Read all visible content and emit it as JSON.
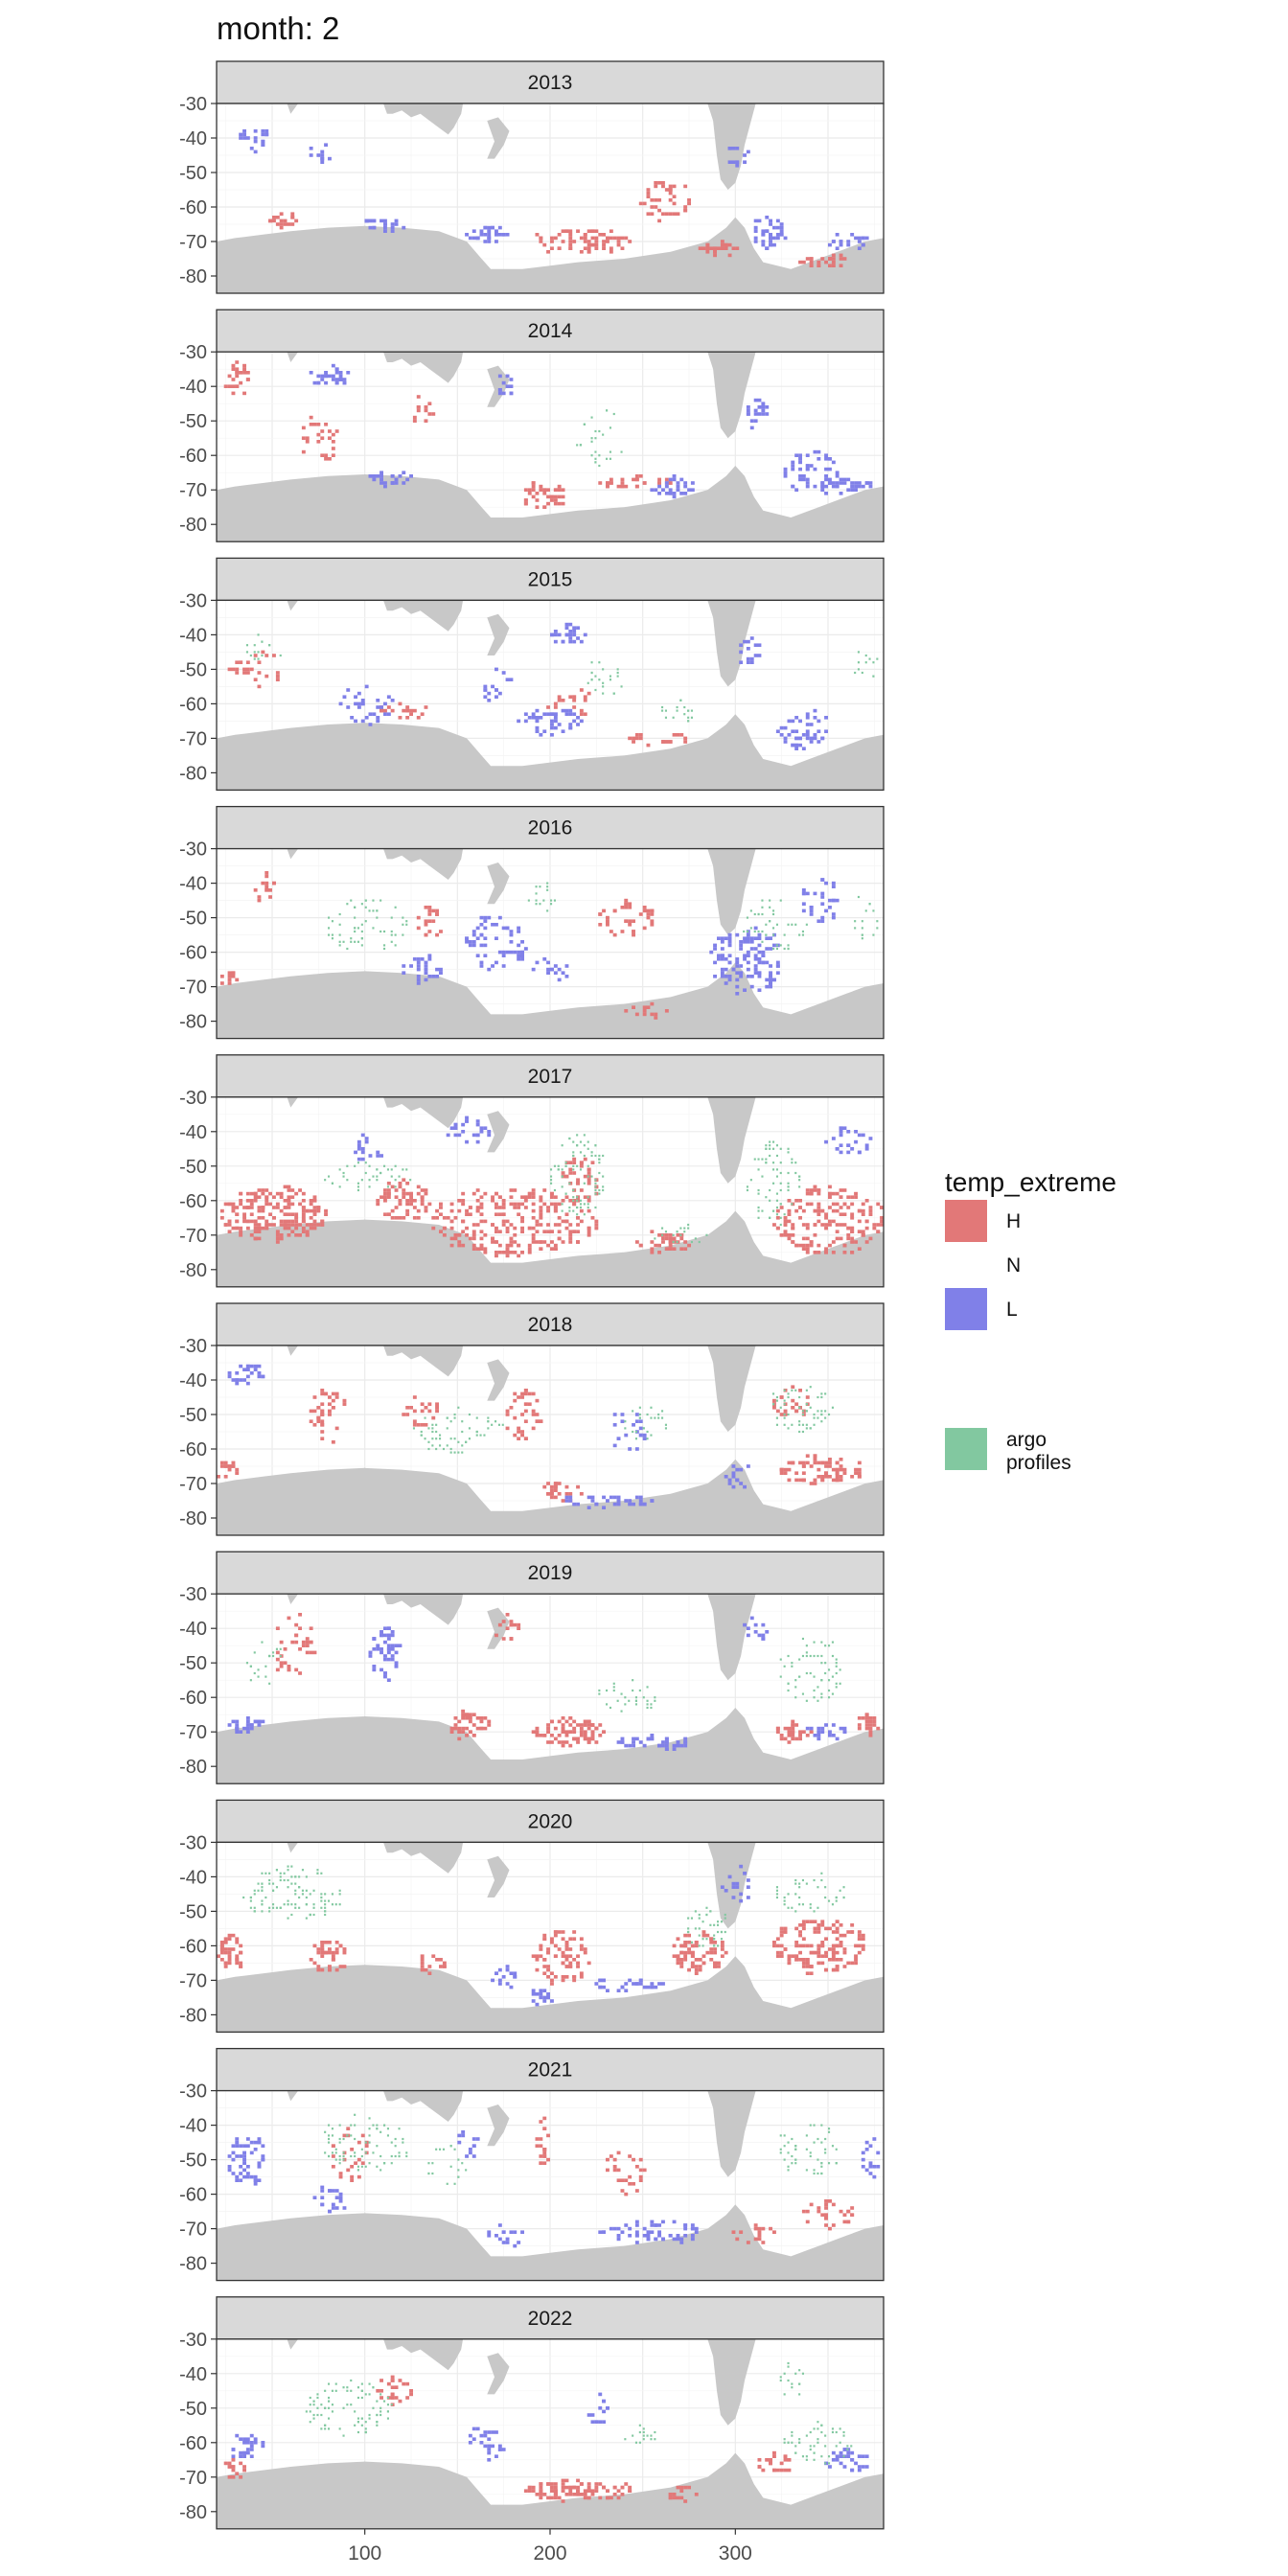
{
  "title": "month: 2",
  "chart_data": {
    "type": "heatmap",
    "facet_by": "year",
    "panels": [
      "2013",
      "2014",
      "2015",
      "2016",
      "2017",
      "2018",
      "2019",
      "2020",
      "2021",
      "2022"
    ],
    "x_ticks": [
      100,
      200,
      300
    ],
    "x_range": [
      20,
      380
    ],
    "y_ticks": [
      -30,
      -40,
      -50,
      -60,
      -70,
      -80
    ],
    "y_range": [
      -85,
      -30
    ],
    "grid": true,
    "land_color": "#c8c8c8",
    "legend": {
      "title": "temp_extreme",
      "position": "right",
      "entries": [
        {
          "label": "H",
          "color": "#e27878"
        },
        {
          "label": "N",
          "color": "#ffffff"
        },
        {
          "label": "L",
          "color": "#8080e8"
        }
      ],
      "profiles": {
        "label": [
          "argo",
          "profiles"
        ],
        "color": "#82c8a0"
      }
    },
    "blobs": {
      "2013": [
        [
          "H",
          262,
          -58,
          14,
          6,
          40
        ],
        [
          "H",
          215,
          -70,
          28,
          3.5,
          70
        ],
        [
          "H",
          55,
          -64,
          8,
          2,
          20
        ],
        [
          "H",
          290,
          -72,
          10,
          2,
          25
        ],
        [
          "H",
          348,
          -76,
          14,
          2,
          25
        ],
        [
          "L",
          40,
          -40,
          8,
          4,
          20
        ],
        [
          "L",
          318,
          -67,
          10,
          5,
          40
        ],
        [
          "L",
          165,
          -68,
          12,
          2.5,
          30
        ],
        [
          "L",
          110,
          -65,
          12,
          2,
          25
        ],
        [
          "L",
          360,
          -70,
          12,
          2,
          20
        ],
        [
          "L",
          300,
          -45,
          6,
          4,
          12
        ],
        [
          "L",
          75,
          -44,
          6,
          3,
          10
        ]
      ],
      "2014": [
        [
          "H",
          30,
          -38,
          7,
          5,
          25
        ],
        [
          "H",
          195,
          -72,
          14,
          4,
          40
        ],
        [
          "H",
          75,
          -55,
          10,
          8,
          25
        ],
        [
          "H",
          245,
          -68,
          20,
          2,
          30
        ],
        [
          "H",
          130,
          -47,
          6,
          4,
          12
        ],
        [
          "L",
          80,
          -37,
          12,
          3,
          30
        ],
        [
          "L",
          340,
          -65,
          15,
          7,
          50
        ],
        [
          "L",
          360,
          -69,
          15,
          2,
          30
        ],
        [
          "L",
          265,
          -69,
          12,
          3,
          30
        ],
        [
          "L",
          115,
          -67,
          15,
          2,
          25
        ],
        [
          "L",
          310,
          -48,
          8,
          4,
          20
        ],
        [
          "L",
          175,
          -40,
          5,
          4,
          12
        ],
        [
          "N",
          228,
          -55,
          14,
          8,
          28
        ]
      ],
      "2015": [
        [
          "H",
          40,
          -50,
          14,
          6,
          25
        ],
        [
          "H",
          120,
          -62,
          15,
          2,
          20
        ],
        [
          "H",
          210,
          -60,
          12,
          5,
          18
        ],
        [
          "H",
          255,
          -70,
          18,
          2,
          20
        ],
        [
          "L",
          210,
          -40,
          10,
          3,
          25
        ],
        [
          "L",
          200,
          -65,
          18,
          4,
          45
        ],
        [
          "L",
          335,
          -67,
          14,
          6,
          45
        ],
        [
          "L",
          100,
          -60,
          15,
          6,
          30
        ],
        [
          "L",
          305,
          -45,
          8,
          5,
          15
        ],
        [
          "L",
          170,
          -55,
          8,
          6,
          15
        ],
        [
          "N",
          230,
          -52,
          10,
          6,
          22
        ],
        [
          "N",
          45,
          -45,
          12,
          5,
          15
        ],
        [
          "N",
          370,
          -48,
          6,
          6,
          12
        ],
        [
          "N",
          270,
          -62,
          12,
          3,
          18
        ]
      ],
      "2016": [
        [
          "H",
          45,
          -40,
          8,
          6,
          15
        ],
        [
          "H",
          240,
          -50,
          15,
          6,
          40
        ],
        [
          "H",
          135,
          -50,
          10,
          6,
          20
        ],
        [
          "H",
          25,
          -68,
          5,
          3,
          10
        ],
        [
          "H",
          250,
          -77,
          12,
          2,
          12
        ],
        [
          "L",
          305,
          -62,
          20,
          10,
          120
        ],
        [
          "L",
          170,
          -57,
          18,
          8,
          60
        ],
        [
          "L",
          130,
          -65,
          12,
          4,
          25
        ],
        [
          "L",
          200,
          -65,
          10,
          4,
          15
        ],
        [
          "L",
          345,
          -45,
          10,
          8,
          30
        ],
        [
          "N",
          100,
          -52,
          22,
          8,
          60
        ],
        [
          "N",
          320,
          -52,
          18,
          8,
          45
        ],
        [
          "N",
          195,
          -45,
          8,
          5,
          15
        ],
        [
          "N",
          370,
          -50,
          6,
          8,
          15
        ]
      ],
      "2017": [
        [
          "H",
          50,
          -64,
          30,
          8,
          200
        ],
        [
          "H",
          180,
          -66,
          45,
          10,
          260
        ],
        [
          "H",
          350,
          -66,
          30,
          10,
          180
        ],
        [
          "H",
          120,
          -60,
          15,
          6,
          60
        ],
        [
          "H",
          260,
          -72,
          15,
          3,
          40
        ],
        [
          "H",
          215,
          -55,
          10,
          8,
          40
        ],
        [
          "L",
          155,
          -40,
          12,
          4,
          25
        ],
        [
          "L",
          100,
          -45,
          8,
          4,
          15
        ],
        [
          "L",
          360,
          -43,
          12,
          5,
          25
        ],
        [
          "N",
          215,
          -53,
          15,
          12,
          90
        ],
        [
          "N",
          320,
          -55,
          15,
          12,
          70
        ],
        [
          "N",
          100,
          -53,
          25,
          4,
          40
        ],
        [
          "N",
          270,
          -70,
          15,
          4,
          20
        ]
      ],
      "2018": [
        [
          "H",
          80,
          -50,
          10,
          8,
          40
        ],
        [
          "H",
          185,
          -50,
          10,
          8,
          40
        ],
        [
          "H",
          345,
          -66,
          25,
          4,
          80
        ],
        [
          "H",
          205,
          -72,
          12,
          3,
          25
        ],
        [
          "H",
          25,
          -66,
          6,
          3,
          15
        ],
        [
          "H",
          130,
          -50,
          10,
          5,
          20
        ],
        [
          "H",
          330,
          -47,
          10,
          5,
          25
        ],
        [
          "L",
          35,
          -38,
          10,
          3,
          25
        ],
        [
          "L",
          230,
          -75,
          25,
          2,
          35
        ],
        [
          "L",
          300,
          -68,
          8,
          4,
          15
        ],
        [
          "L",
          240,
          -55,
          12,
          6,
          20
        ],
        [
          "N",
          335,
          -48,
          18,
          7,
          60
        ],
        [
          "N",
          150,
          -55,
          25,
          7,
          60
        ],
        [
          "N",
          250,
          -52,
          12,
          6,
          25
        ]
      ],
      "2019": [
        [
          "H",
          210,
          -70,
          20,
          4,
          90
        ],
        [
          "H",
          155,
          -68,
          12,
          4,
          40
        ],
        [
          "H",
          330,
          -70,
          10,
          3,
          30
        ],
        [
          "H",
          370,
          -68,
          6,
          3,
          20
        ],
        [
          "H",
          60,
          -45,
          12,
          10,
          35
        ],
        [
          "H",
          175,
          -40,
          8,
          4,
          15
        ],
        [
          "L",
          110,
          -47,
          8,
          8,
          50
        ],
        [
          "L",
          35,
          -68,
          10,
          2,
          25
        ],
        [
          "L",
          255,
          -73,
          20,
          2,
          40
        ],
        [
          "L",
          310,
          -40,
          6,
          4,
          12
        ],
        [
          "L",
          350,
          -70,
          12,
          2,
          20
        ],
        [
          "N",
          340,
          -52,
          20,
          10,
          60
        ],
        [
          "N",
          240,
          -60,
          18,
          5,
          30
        ],
        [
          "N",
          45,
          -50,
          12,
          6,
          20
        ]
      ],
      "2020": [
        [
          "H",
          28,
          -62,
          8,
          5,
          40
        ],
        [
          "H",
          80,
          -63,
          10,
          5,
          40
        ],
        [
          "H",
          205,
          -63,
          15,
          8,
          80
        ],
        [
          "H",
          280,
          -62,
          15,
          6,
          80
        ],
        [
          "H",
          345,
          -60,
          25,
          8,
          140
        ],
        [
          "H",
          135,
          -65,
          8,
          3,
          15
        ],
        [
          "L",
          175,
          -69,
          8,
          3,
          15
        ],
        [
          "L",
          195,
          -75,
          8,
          3,
          15
        ],
        [
          "L",
          240,
          -71,
          20,
          2,
          30
        ],
        [
          "L",
          300,
          -42,
          8,
          5,
          15
        ],
        [
          "N",
          60,
          -45,
          28,
          8,
          110
        ],
        [
          "N",
          285,
          -55,
          12,
          6,
          40
        ],
        [
          "N",
          340,
          -45,
          20,
          6,
          40
        ]
      ],
      "2021": [
        [
          "H",
          195,
          -45,
          3,
          8,
          20
        ],
        [
          "H",
          350,
          -66,
          15,
          4,
          30
        ],
        [
          "H",
          240,
          -55,
          12,
          8,
          25
        ],
        [
          "H",
          90,
          -48,
          12,
          8,
          25
        ],
        [
          "H",
          310,
          -72,
          12,
          3,
          15
        ],
        [
          "L",
          35,
          -50,
          10,
          8,
          50
        ],
        [
          "L",
          255,
          -71,
          30,
          3,
          60
        ],
        [
          "L",
          175,
          -72,
          10,
          3,
          15
        ],
        [
          "L",
          80,
          -62,
          10,
          4,
          20
        ],
        [
          "L",
          155,
          -45,
          6,
          5,
          12
        ],
        [
          "L",
          372,
          -50,
          4,
          6,
          15
        ],
        [
          "N",
          100,
          -45,
          25,
          8,
          80
        ],
        [
          "N",
          340,
          -47,
          18,
          8,
          50
        ],
        [
          "N",
          145,
          -52,
          12,
          6,
          20
        ]
      ],
      "2022": [
        [
          "H",
          215,
          -74,
          30,
          3,
          100
        ],
        [
          "H",
          320,
          -66,
          10,
          3,
          25
        ],
        [
          "H",
          115,
          -45,
          10,
          4,
          25
        ],
        [
          "H",
          30,
          -68,
          8,
          3,
          15
        ],
        [
          "H",
          270,
          -75,
          10,
          2,
          15
        ],
        [
          "L",
          35,
          -61,
          10,
          4,
          25
        ],
        [
          "L",
          165,
          -60,
          10,
          5,
          25
        ],
        [
          "L",
          225,
          -50,
          6,
          5,
          15
        ],
        [
          "L",
          360,
          -65,
          15,
          3,
          30
        ],
        [
          "N",
          90,
          -50,
          25,
          8,
          90
        ],
        [
          "N",
          345,
          -60,
          20,
          6,
          50
        ],
        [
          "N",
          250,
          -58,
          12,
          4,
          15
        ],
        [
          "N",
          330,
          -42,
          8,
          5,
          15
        ]
      ]
    }
  }
}
